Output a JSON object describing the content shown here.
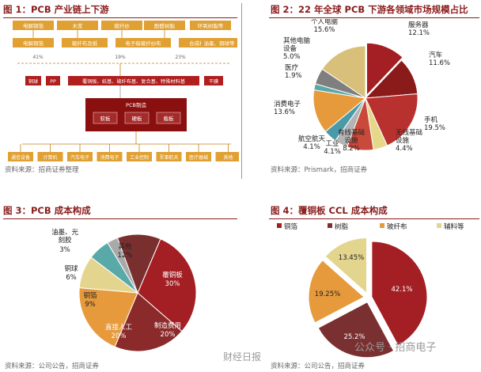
{
  "panels": {
    "fig1": {
      "title": "图 1：PCB 产业链上下游",
      "source": "资料来源：招商证券整理",
      "row1": [
        "电解铜箔",
        "木浆",
        "玻纤纱",
        "酚醛树脂",
        "环氧树脂等"
      ],
      "row2": [
        "电解铜箔",
        "玻纤布及纸",
        "电子级玻纤纱布",
        "合成树脂",
        "油墨、铜球等"
      ],
      "pct": [
        "41%",
        "19%",
        "23%"
      ],
      "row3": [
        "铜球",
        "PP",
        "覆铜板、纸基、玻纤布基、复合基、特殊材料基",
        "干膜"
      ],
      "pcb_label": "PCB制造",
      "pcb_items": [
        "软板",
        "硬板",
        "载板"
      ],
      "apps": [
        "通信设备",
        "计算机",
        "汽车电子",
        "消费电子",
        "工业控制",
        "军事航天",
        "医疗器械",
        "其他"
      ]
    },
    "fig2": {
      "title": "图 2：22 年全球 PCB 下游各领域市场规模占比",
      "source": "资料来源：Prismark，招商证券"
    },
    "fig3": {
      "title": "图 3：PCB 成本构成",
      "source": "资料来源：公司公告，招商证券"
    },
    "fig4": {
      "title": "图 4：覆铜板 CCL 成本构成",
      "source": "资料来源：公司公告，招商证券",
      "watermark_center": "财经日报",
      "watermark_right": "公众号 · 招商电子"
    }
  },
  "chart_data": [
    {
      "type": "pie",
      "categories": [
        "服务器",
        "汽车",
        "手机",
        "无线基础设施",
        "有线基础设施",
        "工业",
        "航空航天",
        "消费电子",
        "医疗",
        "其他电脑设备",
        "个人电脑"
      ],
      "labels": [
        "服务器",
        "汽车",
        "手机",
        "无线基础\n设施",
        "有线基础\n设施",
        "工业",
        "航空航天",
        "消费电子",
        "医疗",
        "其他电脑\n设备",
        "个人电脑"
      ],
      "values": [
        12.1,
        11.6,
        19.5,
        4.4,
        8.2,
        4.1,
        4.1,
        13.6,
        1.9,
        5.0,
        15.6
      ],
      "value_labels": [
        "12.1%",
        "11.6%",
        "19.5%",
        "4.4%",
        "8.2%",
        "4.1%",
        "4.1%",
        "13.6%",
        "1.9%",
        "5.0%",
        "15.6%"
      ],
      "colors": [
        "#a31f24",
        "#8b1a1a",
        "#b8312f",
        "#e6d88a",
        "#c94a3a",
        "#b4b4b4",
        "#4a9aa8",
        "#e69a3c",
        "#5aa7a7",
        "#7f7f7f",
        "#d8c07a"
      ]
    },
    {
      "type": "pie",
      "categories": [
        "覆铜板",
        "制造费用",
        "直接人工",
        "铜箔",
        "铜球",
        "油墨、光刻胶",
        "其他"
      ],
      "labels": [
        "覆铜板",
        "制造费用",
        "直接人工",
        "铜箔",
        "铜球",
        "油墨、光\n刻胶",
        "其他"
      ],
      "values": [
        30,
        20,
        20,
        9,
        6,
        3,
        12
      ],
      "value_labels": [
        "30%",
        "20%",
        "20%",
        "9%",
        "6%",
        "3%",
        "12%"
      ],
      "colors": [
        "#a31f24",
        "#8b2a2a",
        "#e69a3c",
        "#e3d58e",
        "#5aa9a9",
        "#a9a9a9",
        "#7a2f2f"
      ]
    },
    {
      "type": "pie",
      "categories": [
        "铜箔",
        "树脂",
        "玻纤布",
        "辅料等"
      ],
      "values": [
        42.1,
        25.2,
        19.25,
        13.45
      ],
      "value_labels": [
        "42.1%",
        "25.2%",
        "19.25%",
        "13.45%"
      ],
      "colors": [
        "#a31f24",
        "#7a3030",
        "#e69a3c",
        "#e3d58e"
      ]
    }
  ]
}
